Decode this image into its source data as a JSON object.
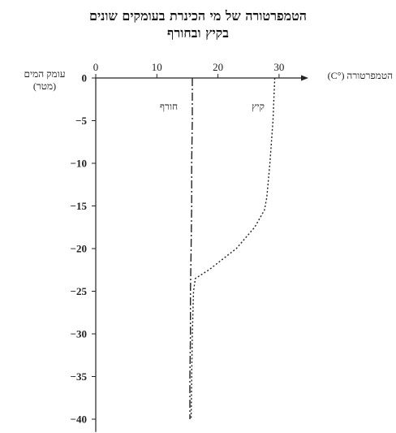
{
  "chart_data": {
    "type": "line",
    "title_line1": "הטמפרטורה של מי הכינרת בעומקים שונים",
    "title_line2": "בקיץ ובחורף",
    "xlabel": "הטמפרטורה (°C)",
    "ylabel_line1": "עומק המים",
    "ylabel_line2": "(מטר)",
    "xlim": [
      0,
      30
    ],
    "ylim": [
      0,
      -40
    ],
    "xticks": [
      0,
      10,
      20,
      30
    ],
    "yticks": [
      0,
      -5,
      -10,
      -15,
      -20,
      -25,
      -30,
      -35,
      -40
    ],
    "ytick_labels": [
      "0",
      "−5",
      "−10",
      "−15",
      "−20",
      "−25",
      "−30",
      "−35",
      "−40"
    ],
    "series": [
      {
        "name": "קיץ",
        "style": "dotted",
        "color": "#222222",
        "x": [
          29.3,
          29.0,
          28.5,
          28.0,
          27.6,
          26.0,
          23.0,
          18.5,
          16.3,
          16.0,
          15.8,
          15.7,
          15.6
        ],
        "y": [
          0,
          -5,
          -10,
          -14,
          -15.5,
          -17.5,
          -20,
          -22.5,
          -23.5,
          -25,
          -30,
          -35,
          -40
        ]
      },
      {
        "name": "חורף",
        "style": "dashdot",
        "color": "#222222",
        "x": [
          15.8,
          15.8,
          15.7,
          15.7,
          15.6,
          15.5,
          15.5,
          15.4,
          15.4
        ],
        "y": [
          0,
          -5,
          -10,
          -15,
          -20,
          -25,
          -30,
          -35,
          -40
        ]
      }
    ]
  }
}
